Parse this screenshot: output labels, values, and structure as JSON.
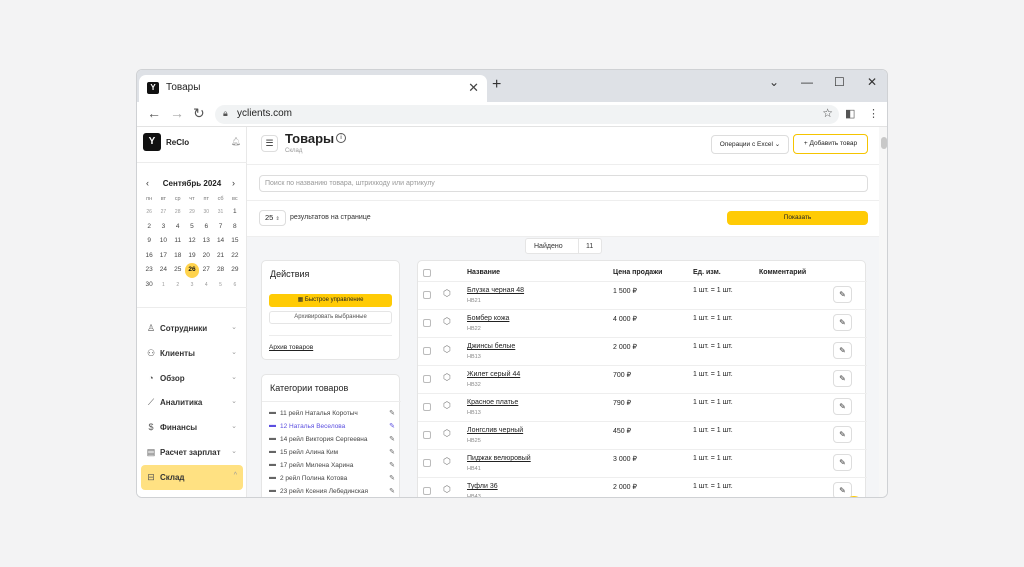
{
  "browser": {
    "tab_title": "Товары",
    "tab_close": "✕",
    "new_tab": "+",
    "url": "yclients.com",
    "controls": {
      "chevron": "⌄",
      "minimize": "—",
      "maximize": "☐",
      "close": "✕"
    }
  },
  "sidebar": {
    "brand": "ReClo",
    "calendar": {
      "month": "Сентябрь 2024",
      "weekdays": [
        "пн",
        "вт",
        "ср",
        "чт",
        "пт",
        "сб",
        "вс"
      ],
      "days": [
        "26",
        "27",
        "28",
        "29",
        "30",
        "31",
        "1",
        "2",
        "3",
        "4",
        "5",
        "6",
        "7",
        "8",
        "9",
        "10",
        "11",
        "12",
        "13",
        "14",
        "15",
        "16",
        "17",
        "18",
        "19",
        "20",
        "21",
        "22",
        "23",
        "24",
        "25",
        "26",
        "27",
        "28",
        "29",
        "30",
        "1",
        "2",
        "3",
        "4",
        "5",
        "6"
      ],
      "today": "26"
    },
    "menu": [
      {
        "label": "Сотрудники",
        "icon": "person-icon",
        "glyph": "♙"
      },
      {
        "label": "Клиенты",
        "icon": "people-icon",
        "glyph": "⚇"
      },
      {
        "label": "Обзор",
        "icon": "overview-icon",
        "glyph": "◔"
      },
      {
        "label": "Аналитика",
        "icon": "chart-icon",
        "glyph": "⟋"
      },
      {
        "label": "Финансы",
        "icon": "money-icon",
        "glyph": "$"
      },
      {
        "label": "Расчет зарплат",
        "icon": "payroll-icon",
        "glyph": "▤"
      },
      {
        "label": "Склад",
        "icon": "warehouse-icon",
        "glyph": "⊟"
      }
    ]
  },
  "header": {
    "title": "Товары",
    "subtitle": "Склад",
    "ops_button": "Операции с Excel",
    "add_button": "Добавить товар"
  },
  "search": {
    "placeholder": "Поиск по названию товара, штрихкоду или артикулу"
  },
  "pagination": {
    "per_page": "25",
    "label": "результатов на странице",
    "show_button": "Показать"
  },
  "found": {
    "label": "Найдено",
    "count": "11"
  },
  "actions": {
    "title": "Действия",
    "quick": "Быстрое управление",
    "archive_selected": "Архивировать выбранные",
    "archive_link": "Архив товаров"
  },
  "categories": {
    "title": "Категории товаров",
    "items": [
      "11 рейл Наталья Коротыч",
      "12 Наталья Веселова",
      "14 рейл Виктория Сергеевна",
      "15 рейл Алина Ким",
      "17 рейл Милена Харина",
      "2 рейл Полина Котова",
      "23 рейл Ксения Лебединская"
    ],
    "selected_index": 1
  },
  "table": {
    "columns": {
      "name": "Название",
      "price": "Цена продажи",
      "unit": "Ед. изм.",
      "comment": "Комментарий"
    },
    "rows": [
      {
        "name": "Блузка черная 48",
        "sku": "НВ21",
        "price": "1 500 ₽",
        "unit": "1 шт. = 1 шт."
      },
      {
        "name": "Бомбер кожа",
        "sku": "НВ22",
        "price": "4 000 ₽",
        "unit": "1 шт. = 1 шт."
      },
      {
        "name": "Джинсы белые",
        "sku": "НВ13",
        "price": "2 000 ₽",
        "unit": "1 шт. = 1 шт."
      },
      {
        "name": "Жилет серый 44",
        "sku": "НВ32",
        "price": "700 ₽",
        "unit": "1 шт. = 1 шт."
      },
      {
        "name": "Красное платье",
        "sku": "НВ13",
        "price": "790 ₽",
        "unit": "1 шт. = 1 шт."
      },
      {
        "name": "Лонгслив черный",
        "sku": "НВ25",
        "price": "450 ₽",
        "unit": "1 шт. = 1 шт."
      },
      {
        "name": "Пиджак велюровый",
        "sku": "НВ41",
        "price": "3 000 ₽",
        "unit": "1 шт. = 1 шт."
      },
      {
        "name": "Туфли 36",
        "sku": "НВ43",
        "price": "2 000 ₽",
        "unit": "1 шт. = 1 шт."
      }
    ]
  }
}
